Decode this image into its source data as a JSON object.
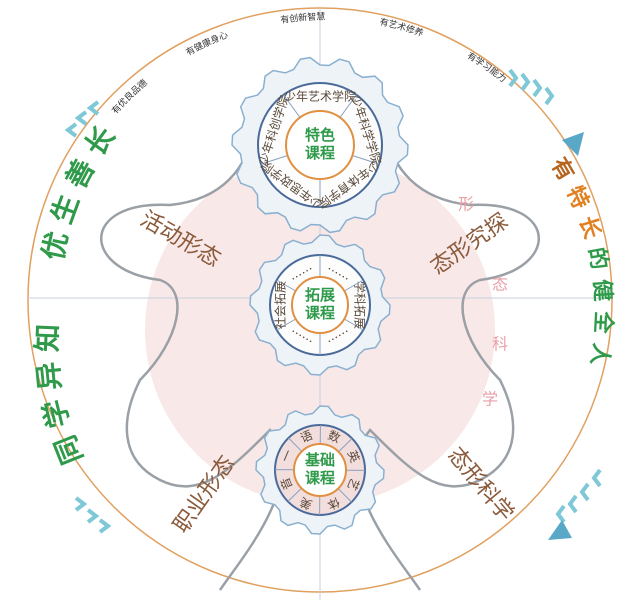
{
  "top_arc": [
    "有优良品德",
    "有健康身心",
    "有创新智慧",
    "有艺术修养",
    "有学习能力"
  ],
  "left_slogan": [
    "同学异知",
    "优生善长"
  ],
  "right_slogan": [
    "有",
    "特长",
    "的",
    "健全人"
  ],
  "forms": [
    "活动形态",
    "态形究探",
    "职业形态",
    "态形科学"
  ],
  "side_chars": [
    "形",
    "态",
    "科",
    "学"
  ],
  "gears": [
    {
      "title": [
        "特色",
        "课程"
      ],
      "labels": [
        "少年艺术学院",
        "少年科学学院",
        "少年体育学院",
        "少年思政学院",
        "少年科创学院"
      ]
    },
    {
      "title": [
        "拓展",
        "课程"
      ],
      "labels": [
        "学科拓展",
        "……",
        "……",
        "社会拓展",
        "……",
        "……"
      ]
    },
    {
      "title": [
        "基础",
        "课程"
      ],
      "labels": [
        "语",
        "数",
        "英",
        "艺",
        "体",
        "美",
        "音",
        "一"
      ]
    }
  ]
}
